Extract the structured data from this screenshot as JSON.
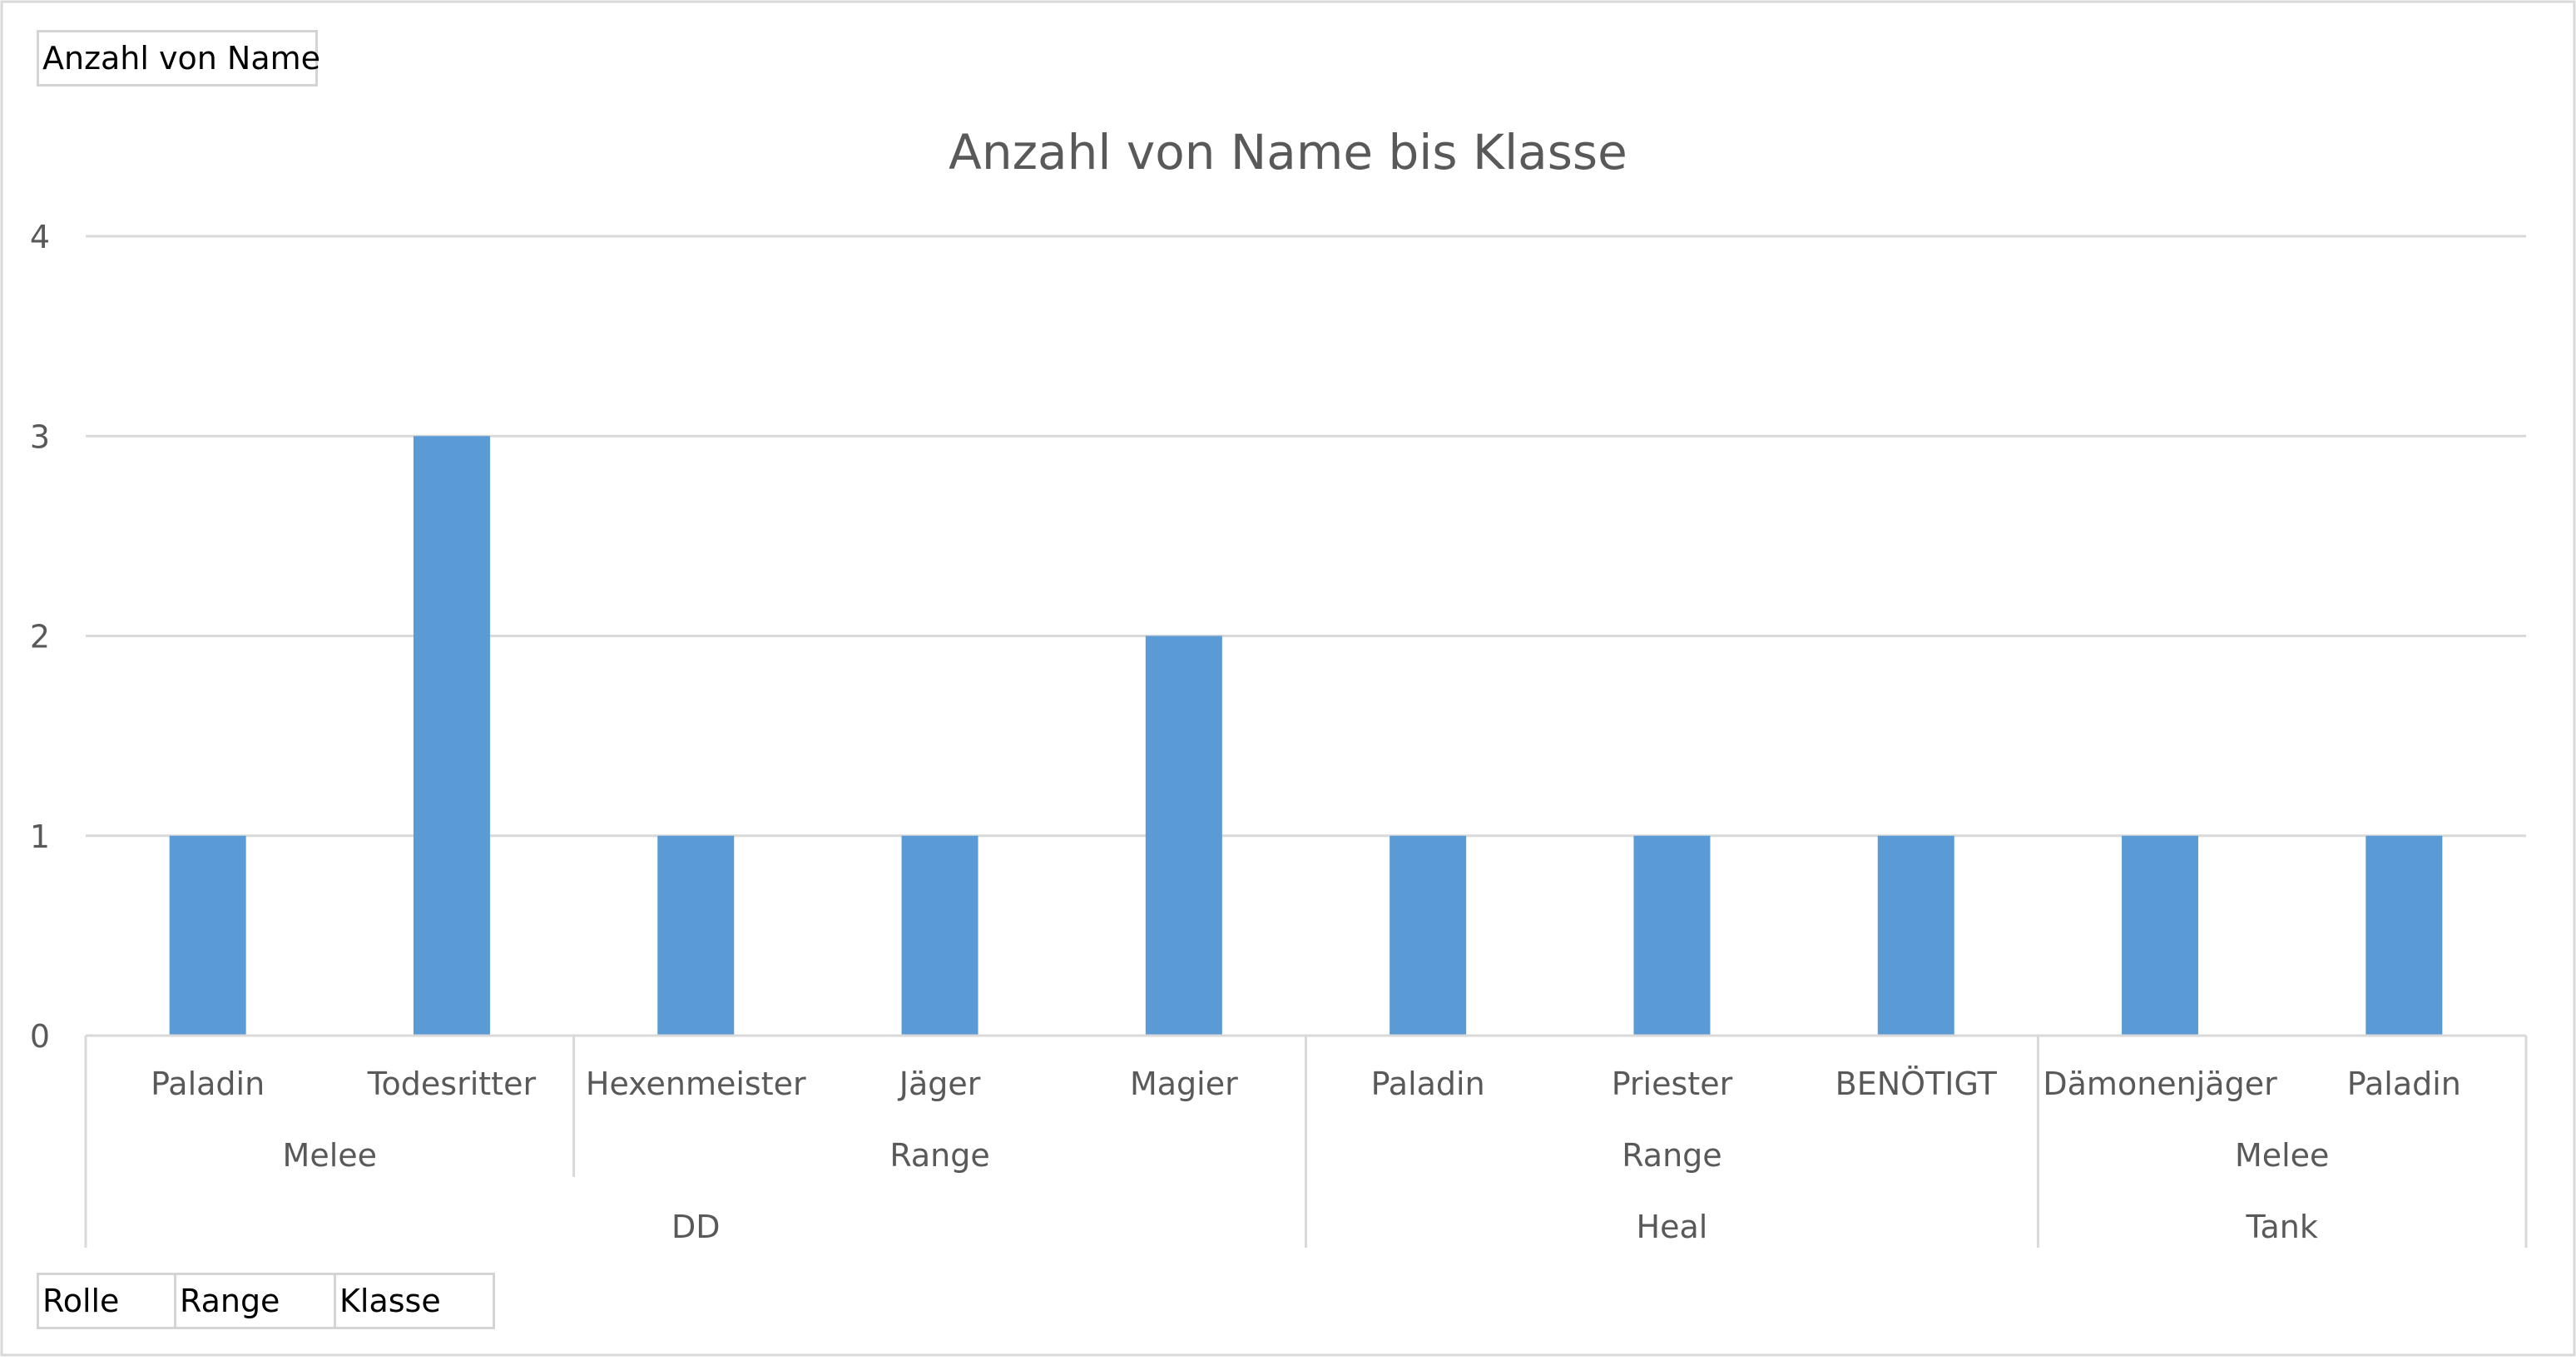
{
  "value_field_button": "Anzahl von Name",
  "axis_field_buttons": [
    "Rolle",
    "Range",
    "Klasse"
  ],
  "colors": {
    "bar": "#5b9bd5",
    "grid": "#d9d9d9",
    "axis_text": "#595959",
    "border": "#d4d4d4"
  },
  "chart_data": {
    "type": "bar",
    "title": "Anzahl von Name bis Klasse",
    "xlabel": "",
    "ylabel": "",
    "ylim": [
      0,
      4
    ],
    "yticks": [
      0,
      1,
      2,
      3,
      4
    ],
    "grid": true,
    "categories": [
      "Paladin",
      "Todesritter",
      "Hexenmeister",
      "Jäger",
      "Magier",
      "Paladin",
      "Priester",
      "BENÖTIGT",
      "Dämonenjäger",
      "Paladin"
    ],
    "values": [
      1,
      3,
      1,
      1,
      2,
      1,
      1,
      1,
      1,
      1
    ],
    "range_groups": [
      {
        "label": "Melee",
        "start": 0,
        "end": 1
      },
      {
        "label": "Range",
        "start": 2,
        "end": 4
      },
      {
        "label": "Range",
        "start": 5,
        "end": 7
      },
      {
        "label": "Melee",
        "start": 8,
        "end": 9
      }
    ],
    "role_groups": [
      {
        "label": "DD",
        "start": 0,
        "end": 4
      },
      {
        "label": "Heal",
        "start": 5,
        "end": 7
      },
      {
        "label": "Tank",
        "start": 8,
        "end": 9
      }
    ]
  }
}
